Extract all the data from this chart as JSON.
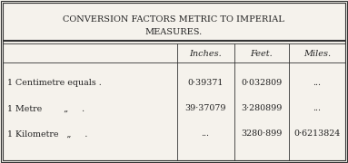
{
  "title_line1": "CONVERSION FACTORS METRIC TO IMPERIAL",
  "title_line2": "MEASURES.",
  "col_headers": [
    "",
    "Inches.",
    "Feet.",
    "Miles."
  ],
  "rows": [
    [
      "1 Centimetre equals .",
      "0·39371",
      "0·032809",
      "..."
    ],
    [
      "1 Metre        „     .",
      "39·37079",
      "3·280899",
      "..."
    ],
    [
      "1 Kilometre   „     .",
      "...",
      "3280·899",
      "0·6213824"
    ]
  ],
  "bg_color": "#f5f2ec",
  "border_color": "#333333",
  "text_color": "#222222",
  "title_fontsize": 7.0,
  "header_fontsize": 7.0,
  "body_fontsize": 6.8,
  "figw": 3.83,
  "figh": 1.8,
  "dpi": 100
}
